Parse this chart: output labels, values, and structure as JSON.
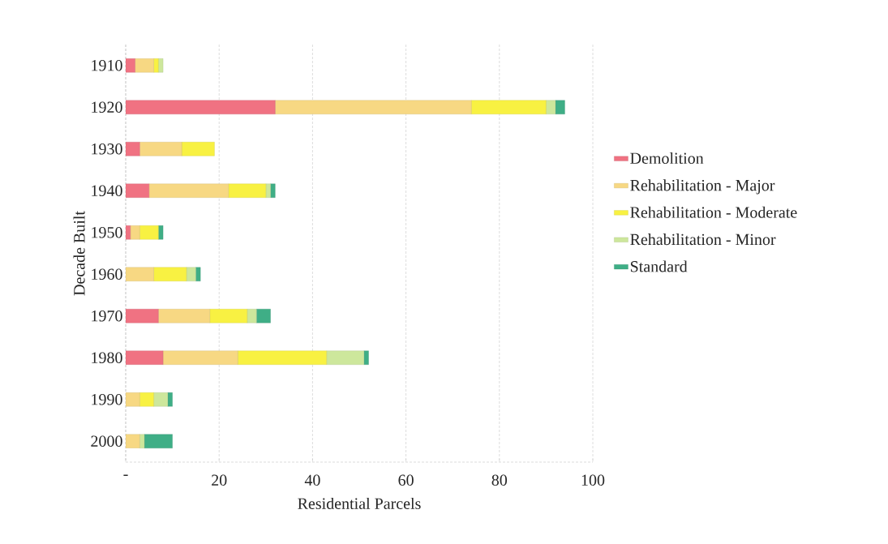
{
  "chart_data": {
    "type": "bar",
    "orientation": "horizontal",
    "stacked": true,
    "xlabel": "Residential Parcels",
    "ylabel": "Decade Built",
    "categories": [
      "1910",
      "1920",
      "1930",
      "1940",
      "1950",
      "1960",
      "1970",
      "1980",
      "1990",
      "2000"
    ],
    "series": [
      {
        "name": "Demolition",
        "color": "#f07282",
        "values": [
          2,
          32,
          3,
          5,
          1,
          0,
          7,
          8,
          0,
          0
        ]
      },
      {
        "name": "Rehabilitation - Major",
        "color": "#f7d883",
        "values": [
          4,
          42,
          9,
          17,
          2,
          6,
          11,
          16,
          3,
          3
        ]
      },
      {
        "name": "Rehabilitation - Moderate",
        "color": "#f8f142",
        "values": [
          1,
          16,
          7,
          8,
          4,
          7,
          8,
          19,
          3,
          0
        ]
      },
      {
        "name": "Rehabilitation - Minor",
        "color": "#cde79c",
        "values": [
          1,
          2,
          0,
          1,
          0,
          2,
          2,
          8,
          3,
          1
        ]
      },
      {
        "name": "Standard",
        "color": "#3fae86",
        "values": [
          0,
          2,
          0,
          1,
          1,
          1,
          3,
          1,
          1,
          6
        ]
      }
    ],
    "xlim": [
      0,
      100
    ],
    "xticks": [
      {
        "value": 0,
        "label": "-"
      },
      20,
      40,
      60,
      80,
      100
    ],
    "grid": "x",
    "legend": "right"
  }
}
